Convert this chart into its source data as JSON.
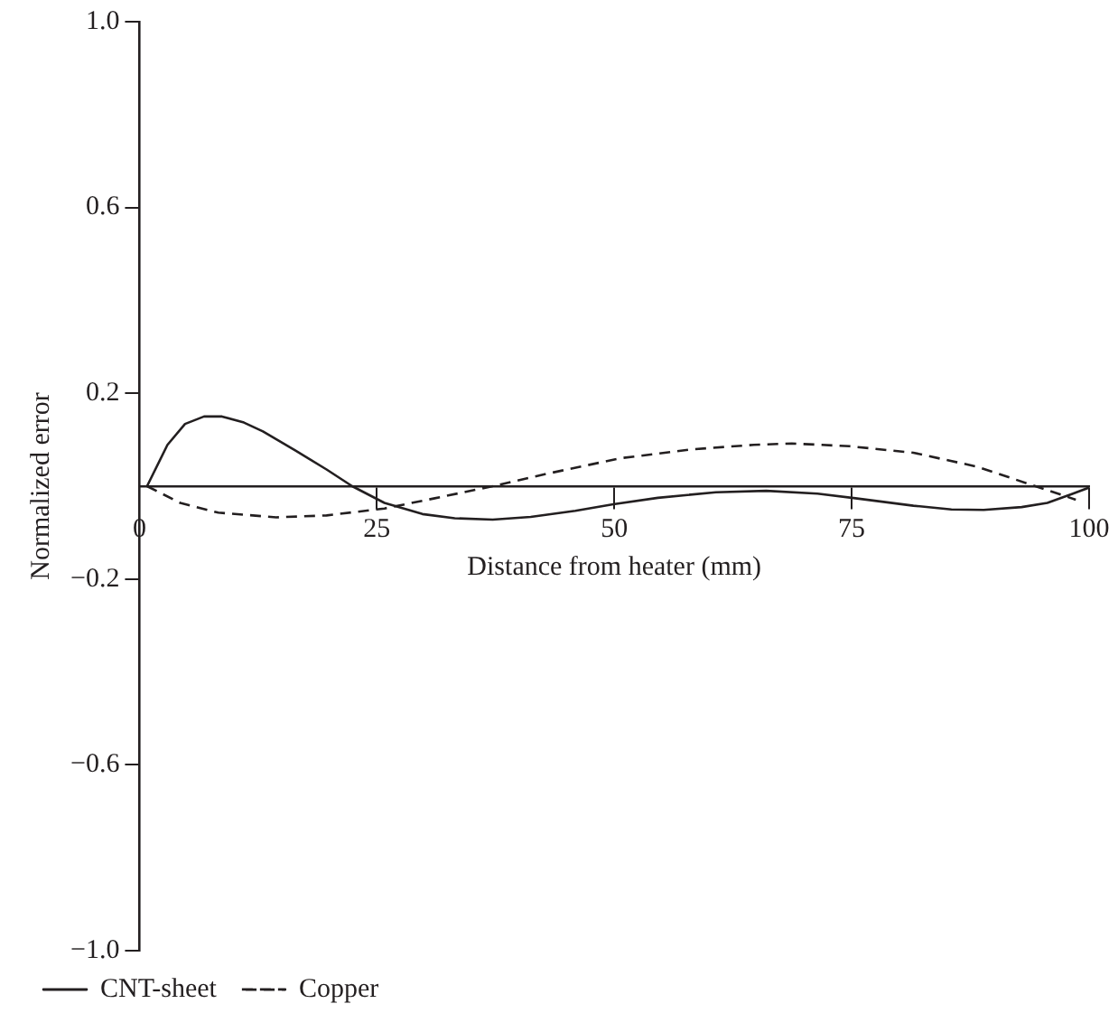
{
  "chart_data": {
    "type": "line",
    "xlabel": "Distance from heater (mm)",
    "ylabel": "Normalized error",
    "xlim": [
      0,
      100
    ],
    "xticks": [
      0,
      25,
      50,
      75,
      100
    ],
    "ylim": [
      -1.0,
      1.0
    ],
    "yticks": [
      {
        "value": -1.0,
        "label": "−1.0"
      },
      {
        "value": -0.6,
        "label": "−0.6"
      },
      {
        "value": -0.2,
        "label": "−0.2"
      },
      {
        "value": 0.2,
        "label": "0.2"
      },
      {
        "value": 0.6,
        "label": "0.6"
      },
      {
        "value": 1.0,
        "label": "1.0"
      }
    ],
    "grid": false,
    "legend": "bottom left",
    "marker": "none",
    "series": [
      {
        "name": "CNT-sheet",
        "color": "#231f20",
        "line_style": "solid",
        "x": [
          0.8,
          2.95,
          4.8,
          6.8,
          8.7,
          11,
          13,
          16.4,
          19.7,
          22.4,
          25.8,
          29.8,
          33.2,
          37.2,
          41.2,
          45.9,
          49.9,
          54.6,
          60.7,
          66,
          71.4,
          75.4,
          81.5,
          85.5,
          88.9,
          92.9,
          95.6,
          98.3,
          100
        ],
        "values": [
          0,
          0.089,
          0.134,
          0.15,
          0.15,
          0.137,
          0.118,
          0.077,
          0.036,
          0,
          -0.036,
          -0.06,
          -0.069,
          -0.072,
          -0.066,
          -0.053,
          -0.039,
          -0.025,
          -0.013,
          -0.01,
          -0.016,
          -0.026,
          -0.042,
          -0.05,
          -0.051,
          -0.045,
          -0.036,
          -0.016,
          -0.003
        ]
      },
      {
        "name": "Copper",
        "color": "#231f20",
        "line_style": "dashed",
        "x": [
          0.8,
          4.3,
          8.3,
          14.4,
          19.7,
          25.8,
          31.1,
          37.2,
          43.2,
          50.6,
          58,
          64.7,
          68.7,
          74.8,
          81.5,
          88.2,
          94.2,
          98.6
        ],
        "values": [
          0,
          -0.036,
          -0.057,
          -0.067,
          -0.063,
          -0.048,
          -0.026,
          0,
          0.028,
          0.06,
          0.079,
          0.089,
          0.092,
          0.086,
          0.072,
          0.042,
          0.001,
          -0.029
        ]
      }
    ]
  }
}
